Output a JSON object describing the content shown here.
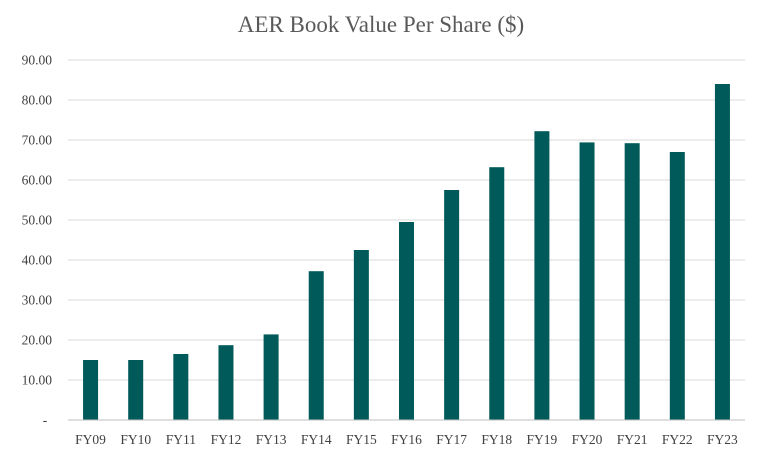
{
  "chart_data": {
    "type": "bar",
    "title": "AER Book Value Per Share ($)",
    "xlabel": "",
    "ylabel": "",
    "categories": [
      "FY09",
      "FY10",
      "FY11",
      "FY12",
      "FY13",
      "FY14",
      "FY15",
      "FY16",
      "FY17",
      "FY18",
      "FY19",
      "FY20",
      "FY21",
      "FY22",
      "FY23"
    ],
    "values": [
      15.0,
      15.0,
      16.5,
      18.7,
      21.4,
      37.2,
      42.5,
      49.5,
      57.5,
      63.2,
      72.2,
      69.4,
      69.2,
      67.0,
      84.0
    ],
    "ylim": [
      0,
      90
    ],
    "y_ticks": [
      "-",
      "10.00",
      "20.00",
      "30.00",
      "40.00",
      "50.00",
      "60.00",
      "70.00",
      "80.00",
      "90.00"
    ],
    "grid": true,
    "legend": "none",
    "bar_color": "#005a5a"
  }
}
